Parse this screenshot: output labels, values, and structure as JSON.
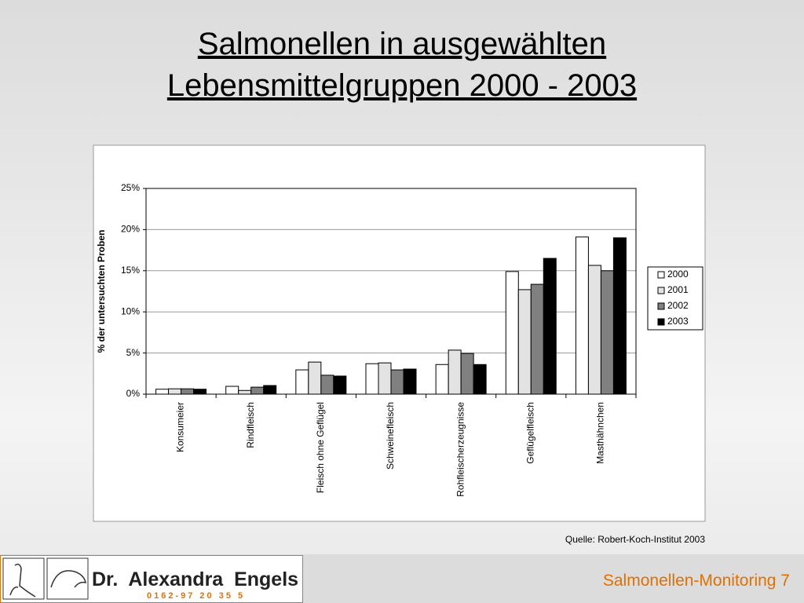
{
  "chart_data": {
    "type": "bar",
    "title": "Salmonellen in ausgewählten Lebensmittelgruppen 2000 - 2003",
    "y_label": "% der untersuchten Proben",
    "categories": [
      "Konsumeier",
      "Rindfleisch",
      "Fleisch ohne Geflügel",
      "Schweinefleisch",
      "Rohfleischerzeugnisse",
      "Geflügelfleisch",
      "Masthähnchen"
    ],
    "series": [
      {
        "name": "2000",
        "color": "#ffffff",
        "values": [
          0.6,
          0.95,
          2.95,
          3.7,
          3.6,
          14.9,
          19.1
        ]
      },
      {
        "name": "2001",
        "color": "#e3e3e3",
        "values": [
          0.65,
          0.45,
          3.9,
          3.8,
          5.35,
          12.7,
          15.65
        ]
      },
      {
        "name": "2002",
        "color": "#808080",
        "values": [
          0.65,
          0.85,
          2.3,
          2.95,
          4.95,
          13.35,
          15.0
        ]
      },
      {
        "name": "2003",
        "color": "#000000",
        "values": [
          0.6,
          1.05,
          2.2,
          3.05,
          3.6,
          16.5,
          19.0
        ]
      }
    ],
    "ylim": [
      0,
      25
    ],
    "yticks": [
      {
        "value": 0,
        "label": "0%"
      },
      {
        "value": 5,
        "label": "5%"
      },
      {
        "value": 10,
        "label": "10%"
      },
      {
        "value": 15,
        "label": "15%"
      },
      {
        "value": 20,
        "label": "20%"
      },
      {
        "value": 25,
        "label": "25%"
      }
    ],
    "grid": true,
    "legend": "right",
    "source": "Quelle: Robert-Koch-Institut 2003"
  },
  "footer": {
    "name": "Dr.  Alexandra  Engels",
    "phone": "0162-97 20 35 5",
    "slide_label": "Salmonellen-Monitoring 7"
  }
}
